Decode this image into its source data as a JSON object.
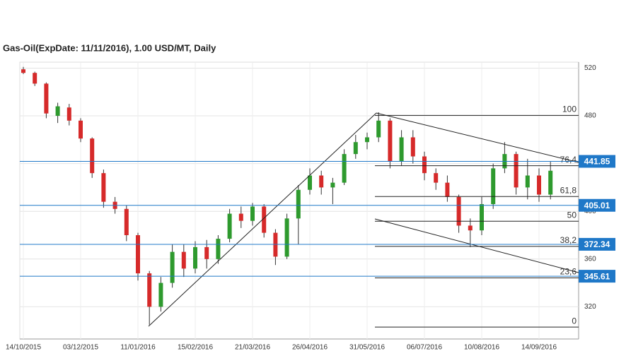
{
  "chart_data": {
    "type": "candlestick",
    "title": "Gas-Oil(ExpDate: 11/11/2016), 1.00 USD/MT, Daily",
    "categories": [
      "14/10/2015",
      null,
      null,
      null,
      null,
      "03/12/2015",
      null,
      null,
      null,
      null,
      "11/01/2016",
      null,
      null,
      null,
      null,
      "15/02/2016",
      null,
      null,
      null,
      null,
      "21/03/2016",
      null,
      null,
      null,
      null,
      "26/04/2016",
      null,
      null,
      null,
      null,
      "31/05/2016",
      null,
      null,
      null,
      null,
      "06/07/2016",
      null,
      null,
      null,
      null,
      "10/08/2016",
      null,
      null,
      null,
      null,
      "14/09/2016",
      null
    ],
    "open": [
      519,
      516,
      507,
      480,
      487,
      476,
      461,
      432,
      408,
      402,
      380,
      348,
      320,
      340,
      366,
      352,
      370,
      360,
      377,
      398,
      392,
      404,
      382,
      362,
      394,
      418,
      430,
      420,
      424,
      448,
      458,
      462,
      476,
      442,
      462,
      446,
      432,
      424,
      412,
      388,
      384,
      406,
      436,
      448,
      420,
      430,
      414
    ],
    "high": [
      521,
      517,
      508,
      491,
      490,
      478,
      462,
      435,
      412,
      405,
      382,
      350,
      345,
      372,
      372,
      375,
      376,
      380,
      402,
      404,
      407,
      406,
      385,
      398,
      422,
      436,
      434,
      428,
      452,
      464,
      466,
      483,
      478,
      468,
      468,
      450,
      436,
      430,
      414,
      394,
      412,
      440,
      458,
      450,
      444,
      436,
      442
    ],
    "low": [
      515,
      505,
      478,
      474,
      472,
      458,
      428,
      403,
      398,
      375,
      342,
      305,
      316,
      336,
      345,
      348,
      352,
      356,
      374,
      386,
      388,
      378,
      355,
      360,
      372,
      414,
      414,
      406,
      422,
      444,
      452,
      458,
      436,
      438,
      440,
      426,
      418,
      408,
      382,
      370,
      380,
      402,
      432,
      414,
      410,
      408,
      410
    ],
    "close": [
      516,
      507,
      482,
      488,
      476,
      461,
      432,
      408,
      402,
      380,
      348,
      320,
      340,
      366,
      352,
      370,
      360,
      377,
      398,
      392,
      404,
      382,
      362,
      394,
      418,
      430,
      420,
      424,
      448,
      458,
      462,
      476,
      442,
      462,
      446,
      432,
      424,
      412,
      388,
      384,
      406,
      436,
      448,
      420,
      430,
      414,
      434
    ],
    "up_color": "#2e9a2e",
    "down_color": "#d62a2a",
    "ylim": [
      293,
      525
    ],
    "yticks": [
      320,
      360,
      400,
      440,
      480,
      520
    ],
    "grid": true,
    "price_lines": [
      441.85,
      405.01,
      372.34,
      345.61
    ],
    "price_line_color": "#1f78c8",
    "fib_levels": [
      {
        "label": "100",
        "value": 480.4
      },
      {
        "label": "76,4",
        "value": 438.2
      },
      {
        "label": "61,8",
        "value": 412.4
      },
      {
        "label": "50",
        "value": 391.7
      },
      {
        "label": "38,2",
        "value": 370.6
      },
      {
        "label": "23,6",
        "value": 344.2
      },
      {
        "label": "0",
        "value": 303
      }
    ]
  }
}
